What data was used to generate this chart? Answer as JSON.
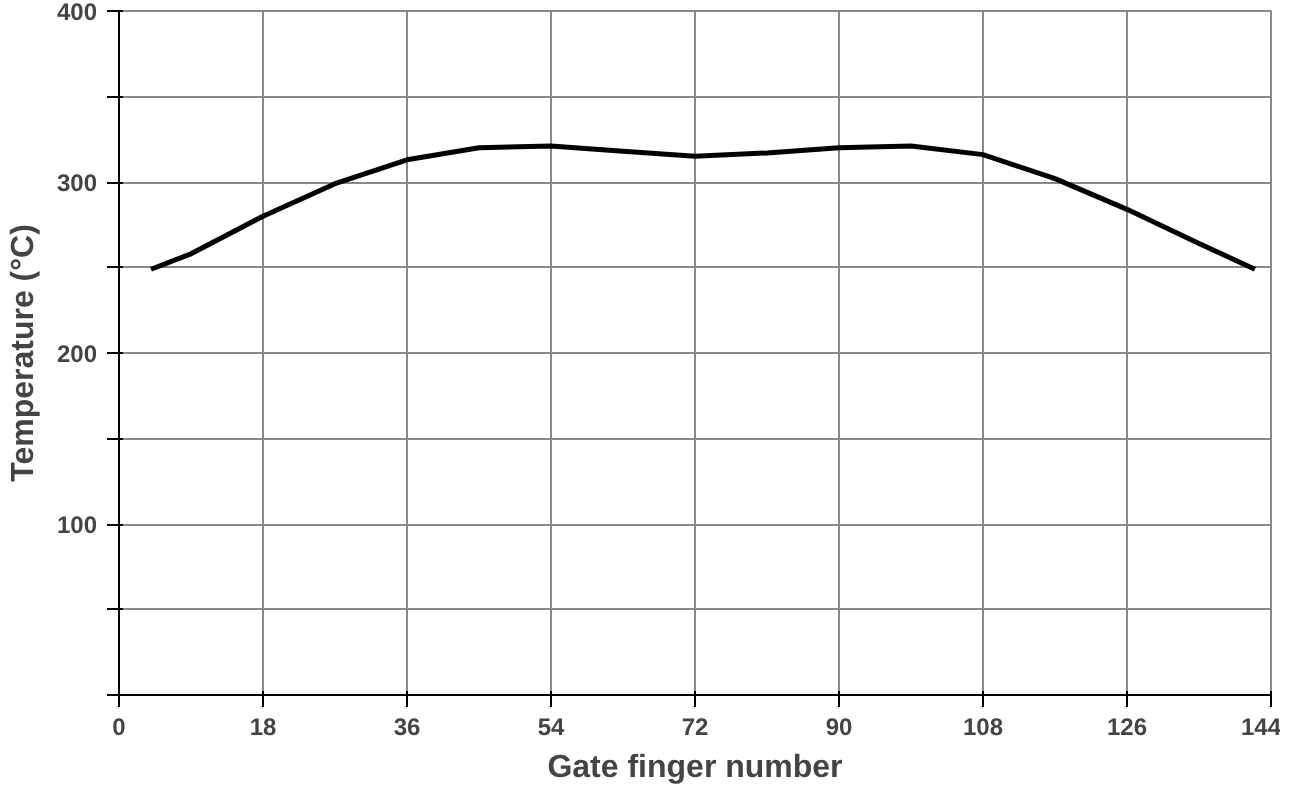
{
  "chart_data": {
    "type": "line",
    "xlabel": "Gate finger number",
    "ylabel": "Temperature (°C)",
    "x": [
      4,
      9,
      18,
      27,
      36,
      45,
      54,
      63,
      72,
      81,
      90,
      99,
      108,
      117,
      126,
      135,
      142
    ],
    "series": [
      {
        "color": "#000000",
        "values": [
          249,
          258,
          280,
          299,
          313,
          320,
          321,
          318,
          315,
          317,
          320,
          321,
          316,
          302,
          284,
          264,
          249
        ]
      }
    ],
    "xlim": [
      0,
      144
    ],
    "xticks": [
      0,
      18,
      36,
      54,
      72,
      90,
      108,
      126,
      144
    ],
    "ylim": [
      0,
      400
    ],
    "yticks": [
      {
        "value": 0,
        "label": null
      },
      {
        "value": 50,
        "label": null
      },
      100,
      {
        "value": 150,
        "label": null
      },
      200,
      {
        "value": 250,
        "label": null
      },
      300,
      {
        "value": 350,
        "label": null
      },
      400
    ],
    "grid": true,
    "marker": "none",
    "line_style": "solid"
  }
}
